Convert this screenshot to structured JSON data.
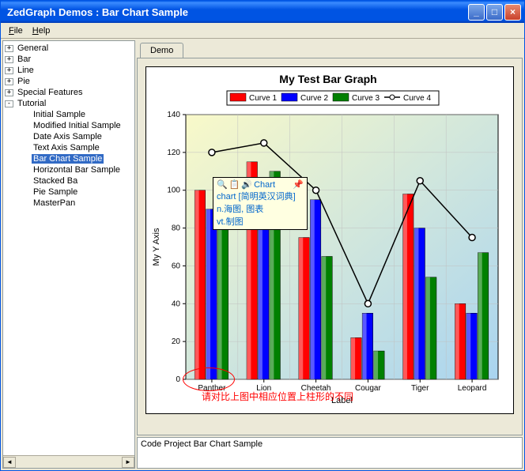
{
  "window": {
    "title": "ZedGraph Demos : Bar Chart Sample"
  },
  "menu": {
    "file": "File",
    "help": "Help"
  },
  "tree": {
    "items": [
      {
        "label": "General",
        "expand": "+",
        "indent": 0
      },
      {
        "label": "Bar",
        "expand": "+",
        "indent": 0
      },
      {
        "label": "Line",
        "expand": "+",
        "indent": 0
      },
      {
        "label": "Pie",
        "expand": "+",
        "indent": 0
      },
      {
        "label": "Special Features",
        "expand": "+",
        "indent": 0
      },
      {
        "label": "Tutorial",
        "expand": "-",
        "indent": 0
      },
      {
        "label": "Initial Sample",
        "expand": "",
        "indent": 1
      },
      {
        "label": "Modified Initial Sample",
        "expand": "",
        "indent": 1
      },
      {
        "label": "Date Axis Sample",
        "expand": "",
        "indent": 1
      },
      {
        "label": "Text Axis Sample",
        "expand": "",
        "indent": 1
      },
      {
        "label": "Bar Chart Sample",
        "expand": "",
        "indent": 1,
        "selected": true
      },
      {
        "label": "Horizontal Bar Sample",
        "expand": "",
        "indent": 1
      },
      {
        "label": "Stacked Ba",
        "expand": "",
        "indent": 1
      },
      {
        "label": "Pie Sample",
        "expand": "",
        "indent": 1
      },
      {
        "label": "MasterPan",
        "expand": "",
        "indent": 1
      }
    ]
  },
  "tab": {
    "demo": "Demo"
  },
  "chart": {
    "type": "bar+line",
    "title": "My Test Bar Graph",
    "title_fontsize": 14,
    "xlabel": "Label",
    "ylabel": "My Y Axis",
    "categories": [
      "Panther",
      "Lion",
      "Cheetah",
      "Cougar",
      "Tiger",
      "Leopard"
    ],
    "ylim": [
      0,
      140
    ],
    "ytick_step": 20,
    "yticks": [
      0,
      20,
      40,
      60,
      80,
      100,
      120,
      140
    ],
    "series": [
      {
        "name": "Curve 1",
        "type": "bar",
        "color": "#ff0000",
        "values": [
          100,
          115,
          75,
          22,
          98,
          40
        ]
      },
      {
        "name": "Curve 2",
        "type": "bar",
        "color": "#0000ff",
        "values": [
          90,
          100,
          95,
          35,
          80,
          35
        ]
      },
      {
        "name": "Curve 3",
        "type": "bar",
        "color": "#008000",
        "values": [
          80,
          110,
          65,
          15,
          54,
          67
        ]
      },
      {
        "name": "Curve 4",
        "type": "line",
        "color": "#000000",
        "marker": "circle",
        "marker_fill": "#ffffff",
        "values": [
          120,
          125,
          100,
          40,
          105,
          75
        ]
      }
    ],
    "bar_width": 0.22,
    "background_gradient": [
      "#f9f9c9",
      "#a9d4f0"
    ],
    "pane_background": "#ffffff",
    "grid_color": "#c0c0c0",
    "axis_color": "#000000",
    "legend_position": "top",
    "legend_border": "#000000",
    "label_fontsize": 11
  },
  "tooltip": {
    "word": "Chart",
    "dict": "chart [简明英汉词典]",
    "line1": "n.海图, 图表",
    "line2": "vt.制图"
  },
  "annotation": {
    "text": "请对比上图中相应位置上柱形的不同"
  },
  "status": {
    "text": "Code Project Bar Chart Sample"
  }
}
